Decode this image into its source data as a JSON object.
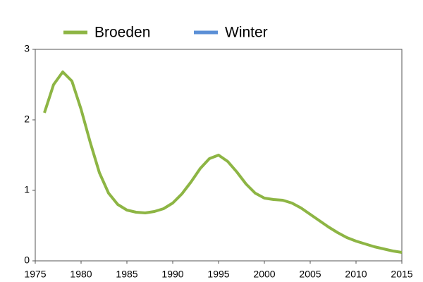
{
  "chart_data": {
    "type": "line",
    "x": [
      1976,
      1977,
      1978,
      1979,
      1980,
      1981,
      1982,
      1983,
      1984,
      1985,
      1986,
      1987,
      1988,
      1989,
      1990,
      1991,
      1992,
      1993,
      1994,
      1995,
      1996,
      1997,
      1998,
      1999,
      2000,
      2001,
      2002,
      2003,
      2004,
      2005,
      2006,
      2007,
      2008,
      2009,
      2010,
      2011,
      2012,
      2013,
      2014,
      2015
    ],
    "series": [
      {
        "name": "Broeden",
        "color": "#8db544",
        "values": [
          2.1,
          2.5,
          2.68,
          2.55,
          2.15,
          1.68,
          1.25,
          0.96,
          0.8,
          0.72,
          0.69,
          0.68,
          0.7,
          0.74,
          0.82,
          0.95,
          1.12,
          1.31,
          1.45,
          1.5,
          1.41,
          1.26,
          1.09,
          0.96,
          0.89,
          0.87,
          0.86,
          0.82,
          0.75,
          0.66,
          0.57,
          0.48,
          0.4,
          0.33,
          0.28,
          0.24,
          0.2,
          0.17,
          0.14,
          0.12
        ]
      },
      {
        "name": "Winter",
        "color": "#5b8fd6",
        "values": [
          null,
          null,
          null,
          null,
          null,
          null,
          null,
          null,
          null,
          null,
          null,
          null,
          null,
          null,
          null,
          null,
          null,
          null,
          null,
          null,
          null,
          null,
          null,
          null,
          null,
          null,
          null,
          null,
          null,
          null,
          null,
          null,
          null,
          null,
          null,
          null,
          null,
          null,
          null,
          null
        ]
      }
    ],
    "xlim": [
      1975,
      2015
    ],
    "xticks": [
      1975,
      1980,
      1985,
      1990,
      1995,
      2000,
      2005,
      2010,
      2015
    ],
    "ylim": [
      0,
      3
    ],
    "yticks": [
      0,
      1,
      2,
      3
    ],
    "grid": false
  }
}
